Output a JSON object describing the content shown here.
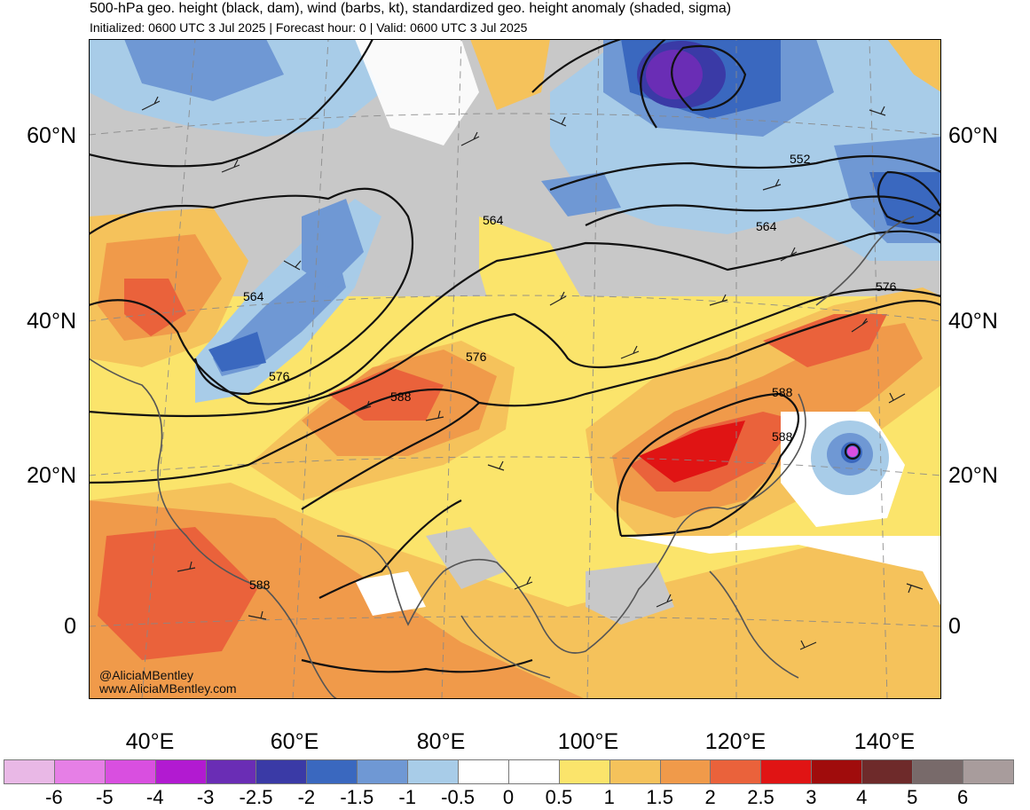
{
  "header": {
    "title": "500-hPa geo. height (black, dam), wind (barbs, kt), standardized geo. height anomaly (shaded, sigma)",
    "subtitle": "Initialized: 0600 UTC 3 Jul 2025 | Forecast hour: 0 | Valid: 0600 UTC 3 Jul 2025"
  },
  "map": {
    "lat_labels": [
      "60°N",
      "40°N",
      "20°N",
      "0"
    ],
    "lon_labels": [
      "40°E",
      "60°E",
      "80°E",
      "100°E",
      "120°E",
      "140°E"
    ],
    "contour_labels": [
      "552",
      "564",
      "564",
      "564",
      "576",
      "576",
      "576",
      "588",
      "588",
      "588",
      "588"
    ],
    "credits": [
      "@AliciaMBentley",
      "www.AliciaMBentley.com"
    ]
  },
  "colorbar": {
    "colors": [
      "#e9b8e6",
      "#e67fe6",
      "#d94fe0",
      "#b21ad1",
      "#6a2db5",
      "#3a3aa6",
      "#3a68bf",
      "#6f98d4",
      "#a8cce8",
      "#ffffff",
      "#ffffff",
      "#fbe46b",
      "#f5c25b",
      "#f09a4a",
      "#ea623b",
      "#e01414",
      "#a00c0c",
      "#6e2a2a",
      "#786a6a",
      "#a89c9c"
    ],
    "ticks": [
      "-6",
      "-5",
      "-4",
      "-3",
      "-2.5",
      "-2",
      "-1.5",
      "-1",
      "-0.5",
      "0",
      "0.5",
      "1",
      "1.5",
      "2",
      "2.5",
      "3",
      "4",
      "5",
      "6"
    ]
  }
}
